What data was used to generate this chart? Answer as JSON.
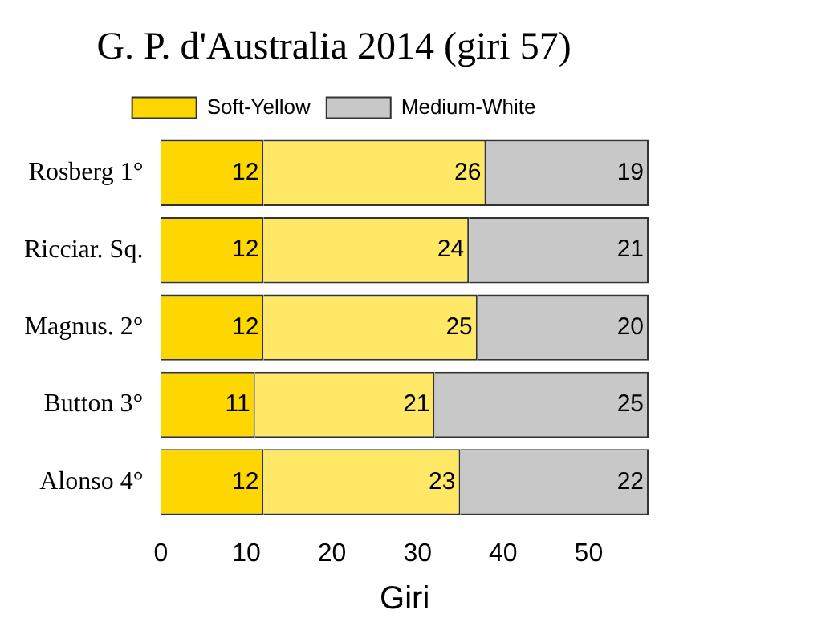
{
  "chart_data": {
    "type": "bar",
    "orientation": "horizontal",
    "stacked": true,
    "title": "G. P. d'Australia 2014 (giri 57)",
    "xlabel": "Giri",
    "categories": [
      "Rosberg 1°",
      "Ricciar. Sq.",
      "Magnus. 2°",
      "Button 3°",
      "Alonso 4°"
    ],
    "series": [
      {
        "name": "Soft-Yellow",
        "color": "#ffd700",
        "values": [
          12,
          12,
          12,
          11,
          12
        ]
      },
      {
        "color": "#ffe866",
        "values": [
          26,
          24,
          25,
          21,
          23
        ]
      },
      {
        "name": "Medium-White",
        "color": "#c8c8c8",
        "values": [
          19,
          21,
          20,
          25,
          22
        ]
      }
    ],
    "xlim": [
      0,
      57
    ],
    "xticks": [
      0,
      10,
      20,
      30,
      40,
      50
    ],
    "data_labels": true,
    "legend": "top",
    "grid": false
  }
}
